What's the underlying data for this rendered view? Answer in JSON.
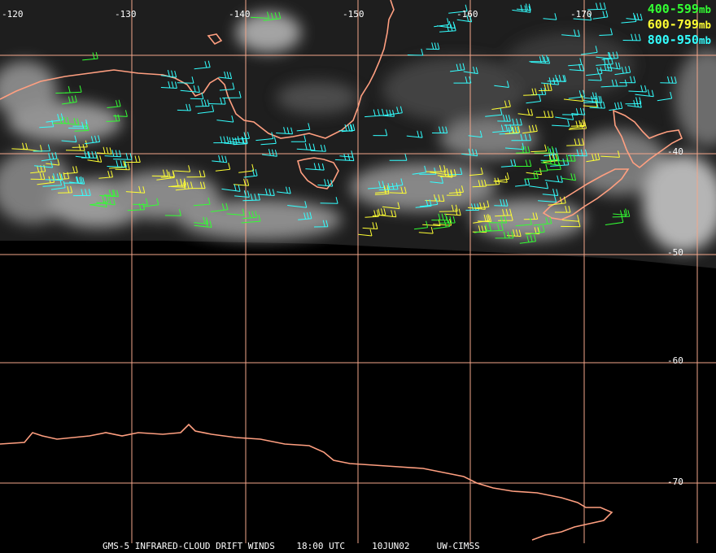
{
  "map": {
    "longitude_labels": [
      "-120",
      "-130",
      "-140",
      "-150",
      "-160",
      "-170"
    ],
    "latitude_labels": [
      "-40",
      "-50",
      "-60",
      "-70"
    ],
    "grid_color": "#f2a68a",
    "coast_color": "#ff9f80"
  },
  "legend": {
    "items": [
      {
        "label": "400-599",
        "unit": "mb",
        "color": "#33ff33"
      },
      {
        "label": "600-799",
        "unit": "mb",
        "color": "#ffff33"
      },
      {
        "label": "800-950",
        "unit": "mb",
        "color": "#33ffff"
      }
    ]
  },
  "footer": {
    "title": "GMS-5 INFRARED-CLOUD DRIFT WINDS",
    "time": "18:00 UTC",
    "date": "10JUN02",
    "source": "UW-CIMSS"
  }
}
